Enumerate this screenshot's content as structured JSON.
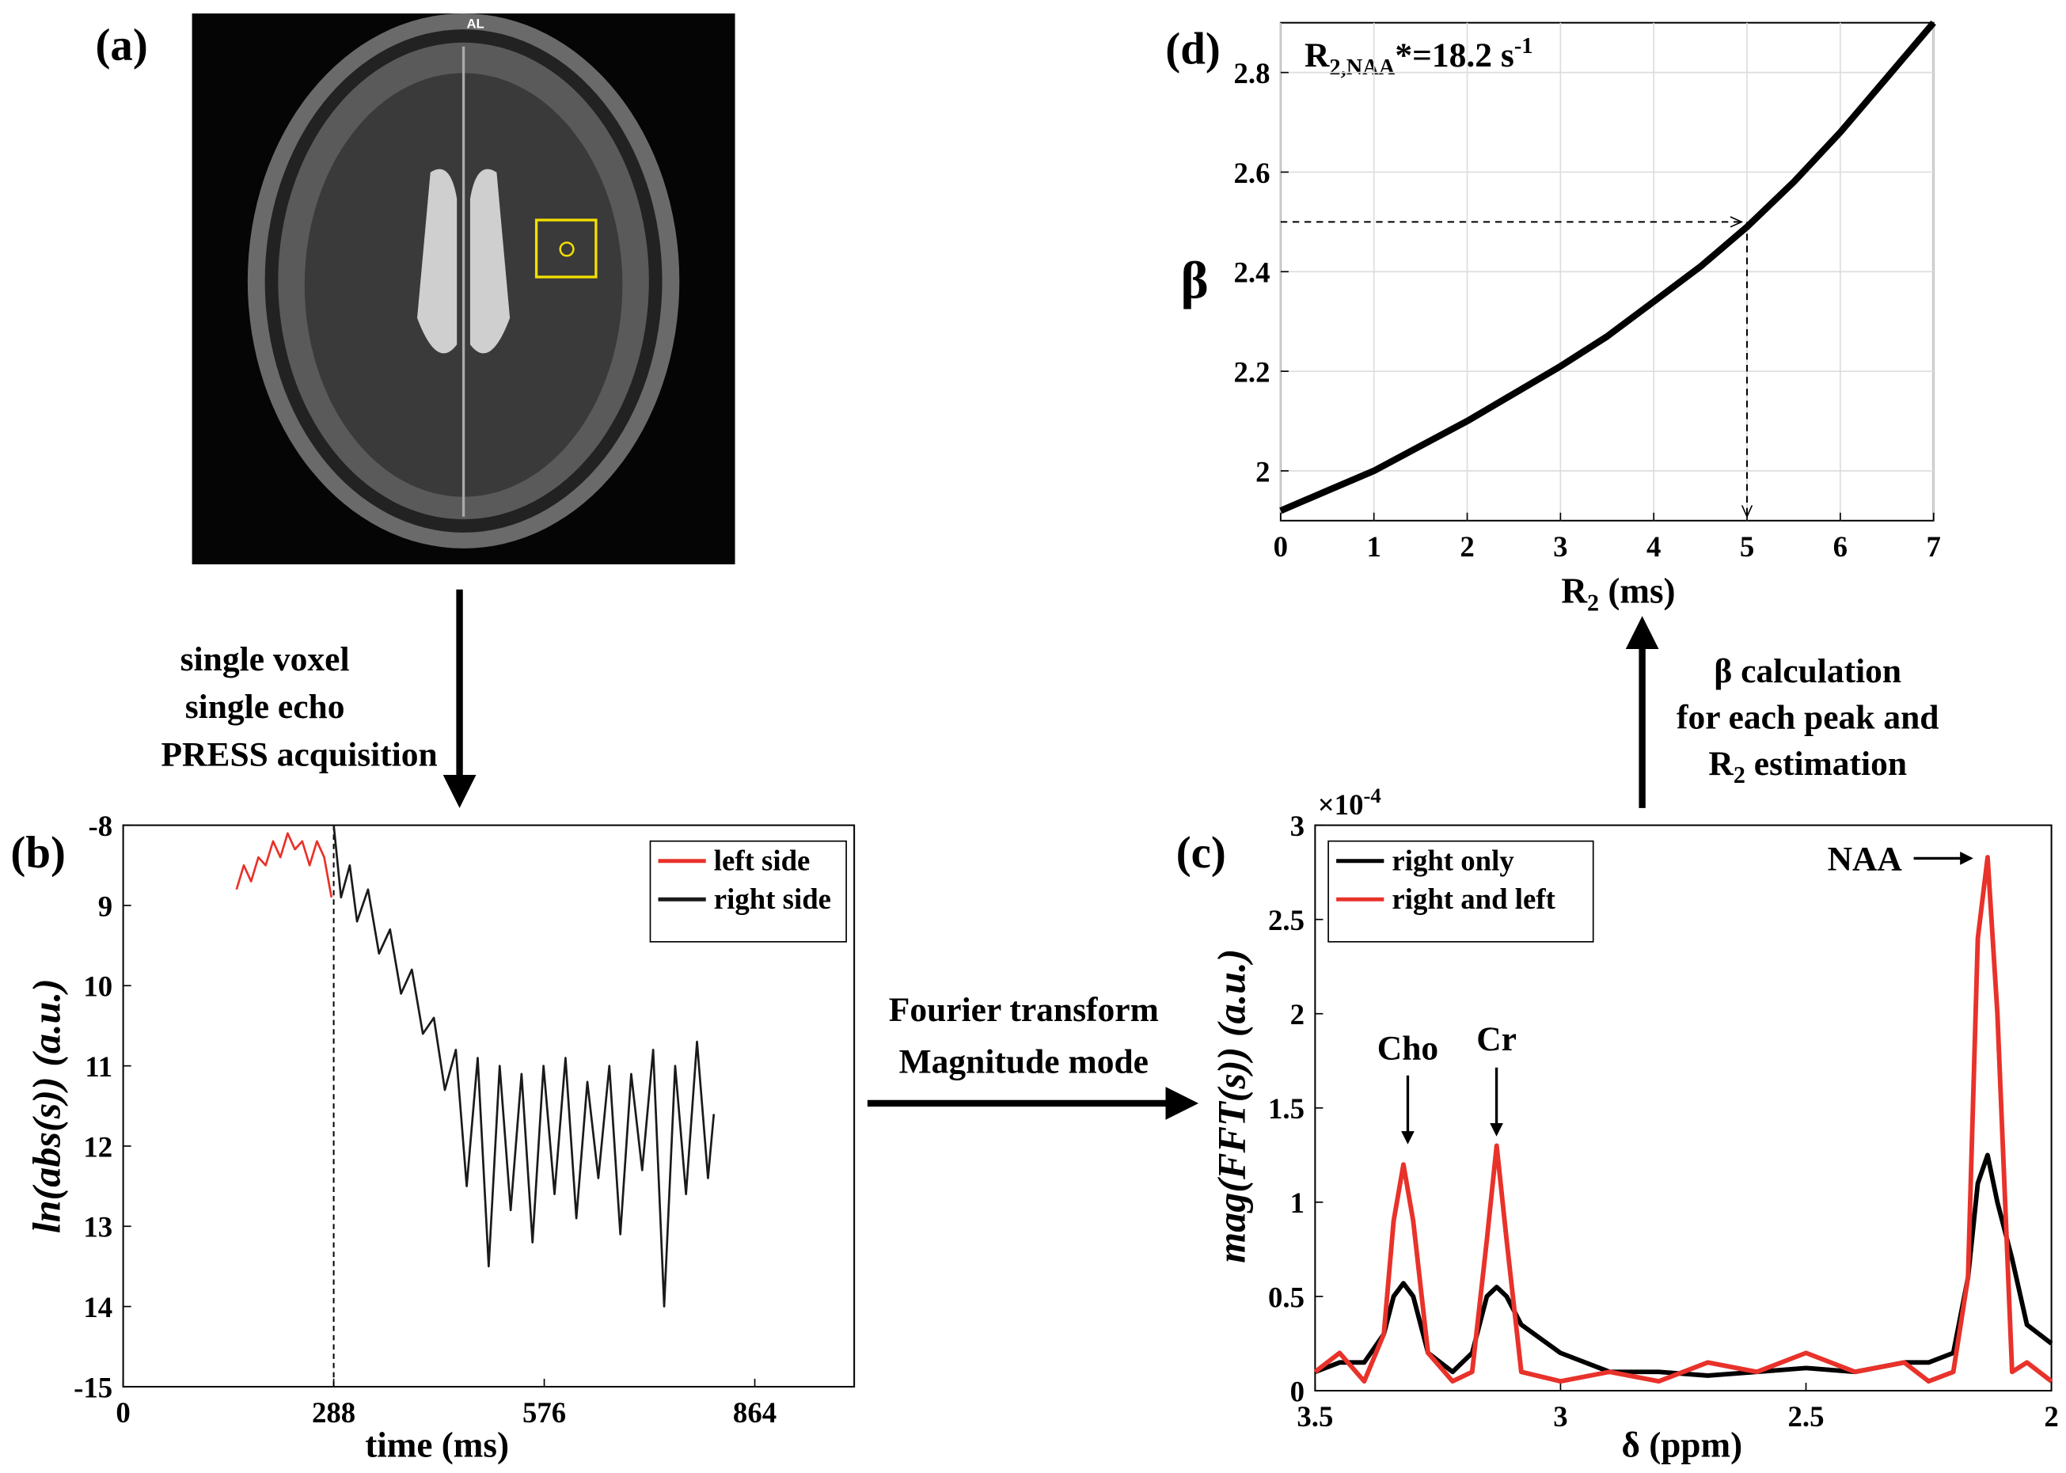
{
  "panel_labels": [
    "(a)",
    "(b)",
    "(c)",
    "(d)"
  ],
  "image": {
    "label": "AL"
  },
  "annotations": {
    "acquisition": [
      "single voxel",
      "single echo",
      "PRESS acquisition"
    ],
    "fourier": [
      "Fourier transform",
      "Magnitude mode"
    ],
    "beta": {
      "lines": [
        "β calculation",
        "for each peak and"
      ],
      "last": [
        "R",
        "2",
        " estimation"
      ]
    }
  },
  "chart_data": [
    {
      "type": "line",
      "xlabel": "time (ms)",
      "ylabel": "ln(abs(s)) (a.u.)",
      "xlim": [
        0,
        1000
      ],
      "xticks": [
        0,
        288,
        576,
        864
      ],
      "ylim": [
        -15,
        -8
      ],
      "yticks": [
        -15,
        {
          "value": -14,
          "label": "14"
        },
        {
          "value": -13,
          "label": "13"
        },
        {
          "value": -12,
          "label": "12"
        },
        {
          "value": -11,
          "label": "11"
        },
        {
          "value": -10,
          "label": "10"
        },
        {
          "value": -9,
          "label": "9"
        },
        -8
      ],
      "grid": false,
      "legend": "upper right",
      "vline": 288,
      "series": [
        {
          "name": "left side",
          "color": "#e8322a",
          "x": [
            155,
            165,
            175,
            185,
            195,
            205,
            215,
            225,
            235,
            245,
            255,
            265,
            275,
            285
          ],
          "values": [
            -8.8,
            -8.5,
            -8.7,
            -8.4,
            -8.5,
            -8.2,
            -8.4,
            -8.1,
            -8.3,
            -8.2,
            -8.5,
            -8.2,
            -8.4,
            -8.9
          ]
        },
        {
          "name": "right side",
          "color": "#1a1a1a",
          "x": [
            288,
            298,
            310,
            320,
            335,
            350,
            365,
            380,
            395,
            410,
            425,
            440,
            455,
            470,
            485,
            500,
            515,
            530,
            545,
            560,
            575,
            590,
            605,
            620,
            635,
            650,
            665,
            680,
            695,
            710,
            725,
            740,
            755,
            770,
            785,
            800,
            808
          ],
          "values": [
            -8.0,
            -8.9,
            -8.5,
            -9.2,
            -8.8,
            -9.6,
            -9.3,
            -10.1,
            -9.8,
            -10.6,
            -10.4,
            -11.3,
            -10.8,
            -12.5,
            -10.9,
            -13.5,
            -11.0,
            -12.8,
            -11.1,
            -13.2,
            -11.0,
            -12.6,
            -10.9,
            -12.9,
            -11.2,
            -12.4,
            -11.0,
            -13.1,
            -11.1,
            -12.3,
            -10.8,
            -14.0,
            -11.0,
            -12.6,
            -10.7,
            -12.4,
            -11.6
          ]
        }
      ]
    },
    {
      "type": "line",
      "xlabel": "δ (ppm)",
      "ylabel": "mag(FFT(s)) (a.u.)",
      "exponent": [
        "×10",
        "-4"
      ],
      "xlim": [
        3.5,
        2
      ],
      "xticks": [
        3.5,
        3,
        2.5,
        2
      ],
      "ylim": [
        0,
        3
      ],
      "yticks": [
        0,
        0.5,
        1,
        1.5,
        2,
        2.5,
        3
      ],
      "grid": false,
      "legend": "upper left",
      "peaks": [
        "Cho",
        "Cr",
        "NAA"
      ],
      "series": [
        {
          "name": "right only",
          "color": "#000000",
          "x": [
            3.5,
            3.45,
            3.4,
            3.36,
            3.34,
            3.32,
            3.3,
            3.27,
            3.22,
            3.18,
            3.15,
            3.13,
            3.11,
            3.08,
            3.0,
            2.9,
            2.8,
            2.7,
            2.6,
            2.5,
            2.4,
            2.3,
            2.25,
            2.2,
            2.17,
            2.15,
            2.13,
            2.11,
            2.08,
            2.05,
            2.0
          ],
          "values": [
            0.1,
            0.15,
            0.15,
            0.3,
            0.5,
            0.57,
            0.5,
            0.2,
            0.1,
            0.2,
            0.5,
            0.55,
            0.5,
            0.35,
            0.2,
            0.1,
            0.1,
            0.08,
            0.1,
            0.12,
            0.1,
            0.15,
            0.15,
            0.2,
            0.6,
            1.1,
            1.25,
            1.0,
            0.7,
            0.35,
            0.25
          ]
        },
        {
          "name": "right and left",
          "color": "#e8322a",
          "x": [
            3.5,
            3.45,
            3.4,
            3.36,
            3.34,
            3.32,
            3.3,
            3.27,
            3.22,
            3.18,
            3.15,
            3.13,
            3.11,
            3.08,
            3.0,
            2.9,
            2.8,
            2.7,
            2.6,
            2.5,
            2.4,
            2.3,
            2.25,
            2.2,
            2.17,
            2.15,
            2.13,
            2.11,
            2.08,
            2.05,
            2.0
          ],
          "values": [
            0.1,
            0.2,
            0.05,
            0.3,
            0.9,
            1.2,
            0.9,
            0.2,
            0.05,
            0.1,
            0.8,
            1.3,
            0.8,
            0.1,
            0.05,
            0.1,
            0.05,
            0.15,
            0.1,
            0.2,
            0.1,
            0.15,
            0.05,
            0.1,
            0.6,
            2.4,
            2.83,
            2.0,
            0.1,
            0.15,
            0.05
          ]
        }
      ]
    },
    {
      "type": "line",
      "annotation": [
        "R",
        "2,NAA",
        "*=18.2 s",
        "-1"
      ],
      "xlabel": [
        "R",
        "2",
        " (ms)"
      ],
      "ylabel": "β",
      "xlim": [
        0,
        7
      ],
      "xticks": [
        0,
        1,
        2,
        3,
        4,
        5,
        6,
        7
      ],
      "ylim": [
        1.9,
        2.9
      ],
      "yticks": [
        2,
        2.2,
        2.4,
        2.6,
        2.8
      ],
      "grid": true,
      "guide": {
        "x": 5,
        "y": 2.5
      },
      "series": [
        {
          "color": "#000000",
          "x": [
            0,
            0.5,
            1,
            1.5,
            2,
            2.5,
            3,
            3.5,
            4,
            4.5,
            5,
            5.5,
            6,
            6.5,
            7
          ],
          "values": [
            1.92,
            1.96,
            2.0,
            2.05,
            2.1,
            2.155,
            2.21,
            2.27,
            2.34,
            2.41,
            2.49,
            2.58,
            2.68,
            2.79,
            2.9
          ]
        }
      ]
    }
  ]
}
